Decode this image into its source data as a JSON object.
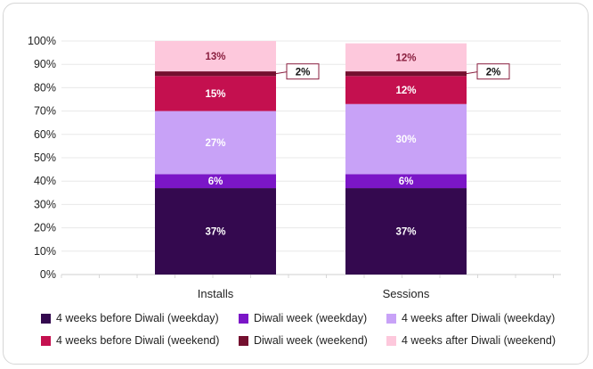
{
  "chart_data": {
    "type": "bar",
    "stacked": true,
    "categories": [
      "Installs",
      "Sessions"
    ],
    "ylim": [
      0,
      100
    ],
    "y_ticks": [
      "0%",
      "10%",
      "20%",
      "30%",
      "40%",
      "50%",
      "60%",
      "70%",
      "80%",
      "90%",
      "100%"
    ],
    "grid": true,
    "legend_position": "bottom",
    "series": [
      {
        "name": "4 weeks before Diwali (weekday)",
        "color": "#34094f",
        "values": [
          37,
          37
        ],
        "labels": [
          "37%",
          "37%"
        ]
      },
      {
        "name": "Diwali week (weekday)",
        "color": "#7b16c7",
        "values": [
          6,
          6
        ],
        "labels": [
          "6%",
          "6%"
        ]
      },
      {
        "name": "4 weeks after Diwali (weekday)",
        "color": "#c8a2f7",
        "values": [
          27,
          30
        ],
        "labels": [
          "27%",
          "30%"
        ]
      },
      {
        "name": "4 weeks before Diwali (weekend)",
        "color": "#c4104f",
        "values": [
          15,
          12
        ],
        "labels": [
          "15%",
          "12%"
        ]
      },
      {
        "name": "Diwali week (weekend)",
        "color": "#74102f",
        "values": [
          2,
          2
        ],
        "labels": [
          "2%",
          "2%"
        ]
      },
      {
        "name": "4 weeks after Diwali (weekend)",
        "color": "#fdc8dc",
        "values": [
          13,
          12
        ],
        "labels": [
          "13%",
          "12%"
        ]
      }
    ],
    "callout_series_index": 4
  }
}
